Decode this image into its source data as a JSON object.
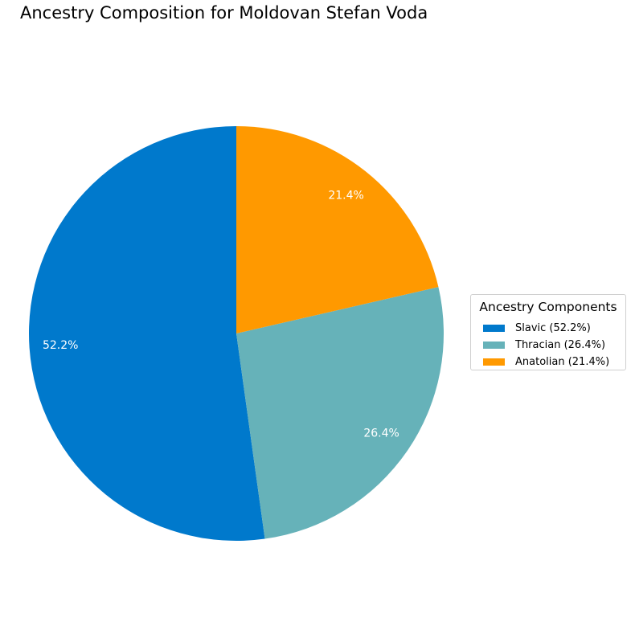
{
  "chart_data": {
    "type": "pie",
    "title": "Ancestry Composition for Moldovan Stefan Voda",
    "slices": [
      {
        "label": "Slavic (52.2%)",
        "value": 52.2,
        "pct_label": "52.2%",
        "color": "#0079cc"
      },
      {
        "label": "Thracian (26.4%)",
        "value": 26.4,
        "pct_label": "26.4%",
        "color": "#66b2b9"
      },
      {
        "label": "Anatolian (21.4%)",
        "value": 21.4,
        "pct_label": "21.4%",
        "color": "#ff9900"
      }
    ],
    "start_angle": "top",
    "direction": "counterclockwise",
    "legend": {
      "title": "Ancestry Components",
      "placement": "right"
    }
  }
}
